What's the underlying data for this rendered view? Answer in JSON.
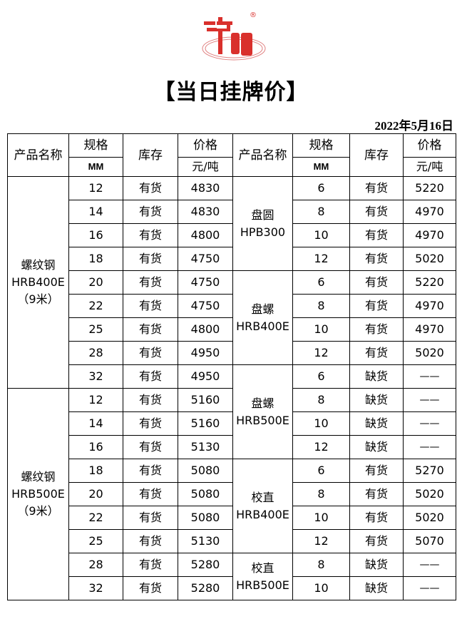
{
  "logo": {
    "text": "沪钢",
    "registered": "®",
    "color": "#d9302c"
  },
  "title": "【当日挂牌价】",
  "date": "2022年5月16日",
  "header": {
    "product": "产品名称",
    "spec": "规格",
    "spec_unit": "MM",
    "stock": "库存",
    "price": "价格",
    "price_unit": "元/吨"
  },
  "left_groups": [
    {
      "name": [
        "螺纹钢",
        "HRB400E",
        "（9米）"
      ],
      "rows": [
        [
          "12",
          "有货",
          "4830"
        ],
        [
          "14",
          "有货",
          "4830"
        ],
        [
          "16",
          "有货",
          "4800"
        ],
        [
          "18",
          "有货",
          "4750"
        ],
        [
          "20",
          "有货",
          "4750"
        ],
        [
          "22",
          "有货",
          "4750"
        ],
        [
          "25",
          "有货",
          "4800"
        ],
        [
          "28",
          "有货",
          "4950"
        ],
        [
          "32",
          "有货",
          "4950"
        ]
      ]
    },
    {
      "name": [
        "螺纹钢",
        "HRB500E",
        "（9米）"
      ],
      "rows": [
        [
          "12",
          "有货",
          "5160"
        ],
        [
          "14",
          "有货",
          "5160"
        ],
        [
          "16",
          "有货",
          "5130"
        ],
        [
          "18",
          "有货",
          "5080"
        ],
        [
          "20",
          "有货",
          "5080"
        ],
        [
          "22",
          "有货",
          "5080"
        ],
        [
          "25",
          "有货",
          "5130"
        ],
        [
          "28",
          "有货",
          "5280"
        ],
        [
          "32",
          "有货",
          "5280"
        ]
      ]
    }
  ],
  "right_groups": [
    {
      "name": [
        "盘圆",
        "HPB300"
      ],
      "rows": [
        [
          "6",
          "有货",
          "5220"
        ],
        [
          "8",
          "有货",
          "4970"
        ],
        [
          "10",
          "有货",
          "4970"
        ],
        [
          "12",
          "有货",
          "5020"
        ]
      ]
    },
    {
      "name": [
        "盘螺",
        "HRB400E"
      ],
      "rows": [
        [
          "6",
          "有货",
          "5220"
        ],
        [
          "8",
          "有货",
          "4970"
        ],
        [
          "10",
          "有货",
          "4970"
        ],
        [
          "12",
          "有货",
          "5020"
        ]
      ]
    },
    {
      "name": [
        "盘螺",
        "HRB500E"
      ],
      "rows": [
        [
          "6",
          "缺货",
          "——"
        ],
        [
          "8",
          "缺货",
          "——"
        ],
        [
          "10",
          "缺货",
          "——"
        ],
        [
          "12",
          "缺货",
          "——"
        ]
      ]
    },
    {
      "name": [
        "校直",
        "HRB400E"
      ],
      "rows": [
        [
          "6",
          "有货",
          "5270"
        ],
        [
          "8",
          "有货",
          "5020"
        ],
        [
          "10",
          "有货",
          "5020"
        ],
        [
          "12",
          "有货",
          "5070"
        ]
      ]
    },
    {
      "name": [
        "校直",
        "HRB500E"
      ],
      "rows": [
        [
          "8",
          "缺货",
          "——"
        ],
        [
          "10",
          "缺货",
          "——"
        ]
      ]
    }
  ]
}
